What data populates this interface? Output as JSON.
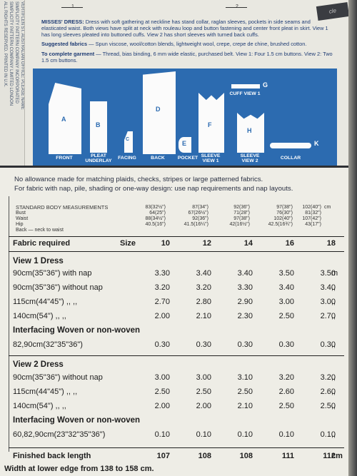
{
  "top": {
    "figure_numbers": [
      "1",
      "2"
    ],
    "corner_tag": "cle",
    "side_text_lines": [
      "VERTIFLEN ST. AUSTRALIAN OFFICE: PLEASE NAME",
      "SIMPLICITY PATTERN COMPANY INCORPORATED",
      "SIMPLICITY PATTERN COMPANY LIMITED LONDON",
      "ALL RIGHTS RESERVED. PRINTED IN U.K."
    ]
  },
  "description": {
    "heading": "MISSES' DRESS:",
    "body": " Dress with soft gathering at neckline has stand collar, raglan sleeves, pockets in side seams and elasticated waist. Both views have split at neck with rouleau loop and button fastening and center front pleat in skirt. View 1 has long sleeves pleated into buttoned cuffs. View 2 has short sleeves with turned back cuffs.",
    "fabrics_heading": "Suggested fabrics",
    "fabrics_text": " — Spun viscose, wool/cotton blends, lightweight wool, crepe, crepe de chine, brushed cotton.",
    "notions_heading": "To complete garment",
    "notions_text": " — Thread, bias binding, 6 mm wide elastic, purchased belt. View 1: Four 1.5 cm buttons. View 2: Two 1.5 cm buttons."
  },
  "pieces": {
    "labels": [
      "A",
      "B",
      "C",
      "D",
      "E",
      "F",
      "G",
      "H",
      "K"
    ],
    "captions": [
      "FRONT",
      "PLEAT UNDERLAY",
      "FACING",
      "BACK",
      "POCKET",
      "SLEEVE VIEW 1",
      "SLEEVE VIEW 2",
      "COLLAR",
      "CUFF VIEW 1"
    ]
  },
  "table": {
    "note_lines": [
      "No allowance made for matching plaids, checks, stripes or large patterned fabrics.",
      "For fabric with nap, pile, shading or one-way design: use nap requirements and nap layouts."
    ],
    "standard_heading": "STANDARD BODY MEASUREMENTS",
    "measure_labels": [
      "Bust",
      "Waist",
      "Hip",
      "Back — neck to waist"
    ],
    "measure_unit": "cm",
    "measure_columns": [
      [
        "83(32½\")",
        "64(25\")",
        "88(34½\")",
        "40.5(16\")"
      ],
      [
        "87(34\")",
        "67(26½\")",
        "92(36\")",
        "41.5(16¼\")"
      ],
      [
        "92(36\")",
        "71(28\")",
        "97(38\")",
        "42(16½\")"
      ],
      [
        "97(38\")",
        "76(30\")",
        "102(40\")",
        "42.5(16¾\")"
      ],
      [
        "102(40\")",
        "81(32\")",
        "107(42\")",
        "43(17\")"
      ]
    ],
    "fabric_required": "Fabric required",
    "size_label": "Size",
    "sizes": [
      "10",
      "12",
      "14",
      "16",
      "18"
    ],
    "view1_heading": "View 1  Dress",
    "view1_rows": [
      {
        "label": "90cm(35\"36\") with nap",
        "values": [
          "3.30",
          "3.40",
          "3.40",
          "3.50",
          "3.50"
        ],
        "unit": "m"
      },
      {
        "label": "90cm(35\"36\") without nap",
        "values": [
          "3.20",
          "3.20",
          "3.30",
          "3.40",
          "3.40"
        ],
        "unit": ",,"
      },
      {
        "label": "115cm(44\"45\")  ,,   ,,",
        "values": [
          "2.70",
          "2.80",
          "2.90",
          "3.00",
          "3.00"
        ],
        "unit": ",,"
      },
      {
        "label": "140cm(54\")     ,,   ,,",
        "values": [
          "2.00",
          "2.10",
          "2.30",
          "2.50",
          "2.70"
        ],
        "unit": ",,"
      }
    ],
    "interfacing1_heading": "Interfacing  Woven or non-woven",
    "interfacing1_row": {
      "label": "82,90cm(32\"35\"36\")",
      "values": [
        "0.30",
        "0.30",
        "0.30",
        "0.30",
        "0.30"
      ],
      "unit": ",,"
    },
    "view2_heading": "View 2  Dress",
    "view2_rows": [
      {
        "label": "90cm(35\"36\") without nap",
        "values": [
          "3.00",
          "3.00",
          "3.10",
          "3.20",
          "3.20"
        ],
        "unit": ",,"
      },
      {
        "label": "115cm(44\"45\")  ,,   ,,",
        "values": [
          "2.50",
          "2.50",
          "2.50",
          "2.60",
          "2.60"
        ],
        "unit": ",,"
      },
      {
        "label": "140cm(54\")     ,,   ,,",
        "values": [
          "2.00",
          "2.00",
          "2.10",
          "2.50",
          "2.50"
        ],
        "unit": ",,"
      }
    ],
    "interfacing2_heading": "Interfacing  Woven or non-woven",
    "interfacing2_row": {
      "label": "60,82,90cm(23\"32\"35\"36\")",
      "values": [
        "0.10",
        "0.10",
        "0.10",
        "0.10",
        "0.10"
      ],
      "unit": ",,"
    },
    "back_length_label": "Finished back length",
    "back_length_values": [
      "107",
      "108",
      "108",
      "111",
      "112"
    ],
    "back_length_unit": "cm",
    "width_text": "Width at lower edge from 138 to 158 cm."
  }
}
